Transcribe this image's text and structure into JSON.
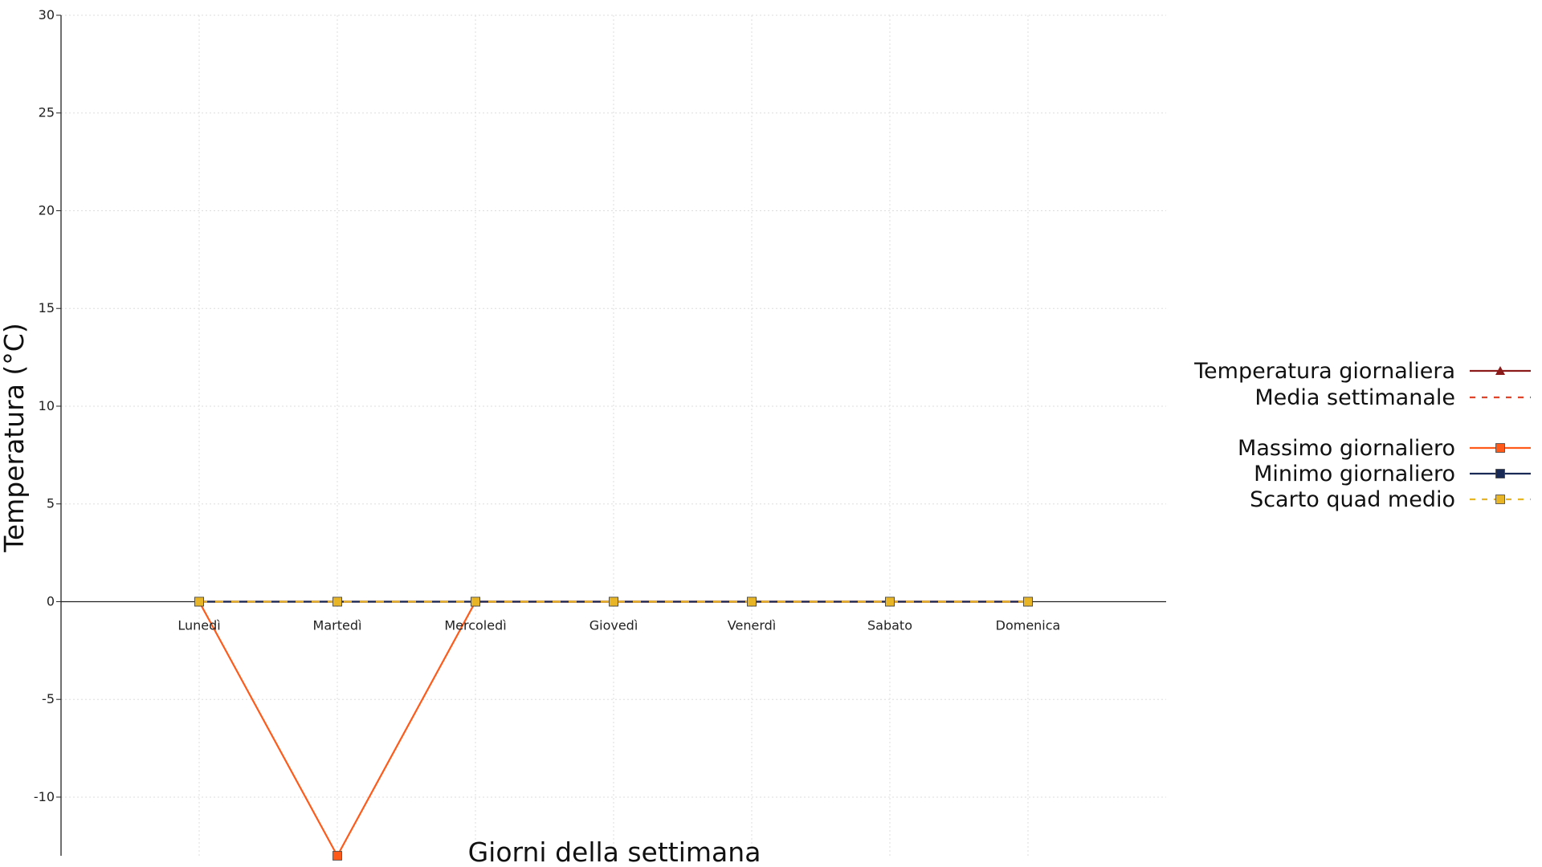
{
  "chart_data": {
    "type": "line",
    "title": "",
    "xlabel": "Giorni della settimana",
    "ylabel": "Temperatura (°C)",
    "categories": [
      "Lunedì",
      "Martedì",
      "Mercoledì",
      "Giovedì",
      "Venerdì",
      "Sabato",
      "Domenica"
    ],
    "ylim": [
      -13,
      30
    ],
    "yticks": [
      -10,
      -5,
      0,
      5,
      10,
      15,
      20,
      25,
      30
    ],
    "grid": true,
    "legend_position": "right",
    "series": [
      {
        "name": "Temperatura giornaliera",
        "values": [
          0,
          0,
          0,
          0,
          0,
          0,
          0
        ],
        "color": "#8b1a1a",
        "line": "solid",
        "marker": "triangle"
      },
      {
        "name": "Media settimanale",
        "values": [
          0,
          0,
          0,
          0,
          0,
          0,
          0
        ],
        "color": "#e0452b",
        "line": "dashed",
        "marker": "none"
      },
      {
        "name": "Massimo giornaliero",
        "values": [
          0,
          -13,
          0,
          0,
          0,
          0,
          0
        ],
        "color": "#ff5a1a",
        "line": "solid",
        "marker": "square"
      },
      {
        "name": "Minimo giornaliero",
        "values": [
          0,
          0,
          0,
          0,
          0,
          0,
          0
        ],
        "color": "#1a2a57",
        "line": "solid",
        "marker": "square"
      },
      {
        "name": "Scarto quad medio",
        "values": [
          0,
          0,
          0,
          0,
          0,
          0,
          0
        ],
        "color": "#e8b526",
        "line": "dashed",
        "marker": "square"
      }
    ]
  }
}
